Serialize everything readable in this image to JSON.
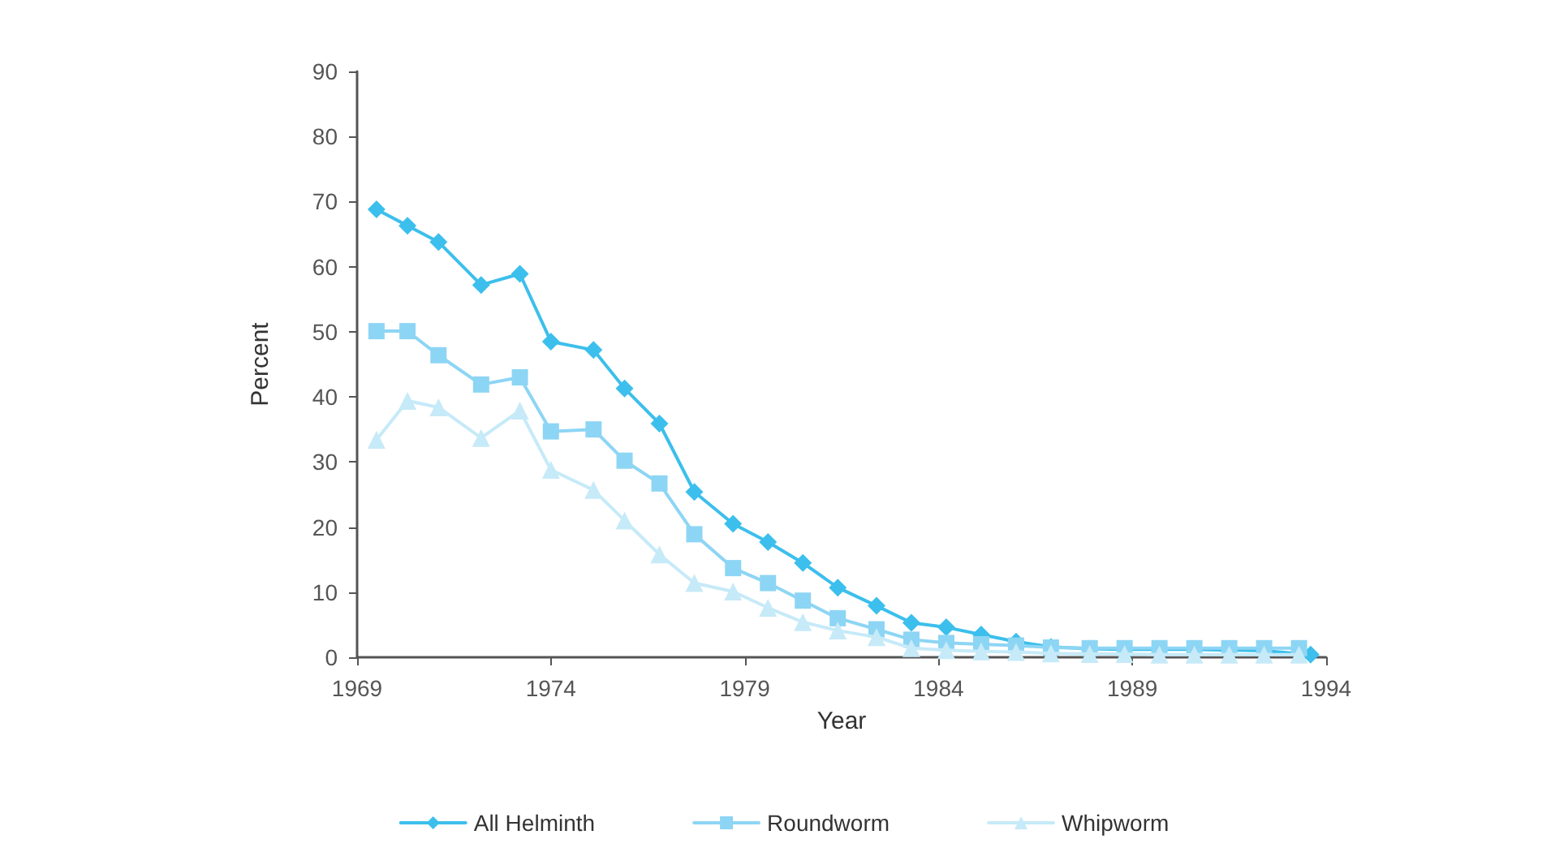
{
  "chart_data": {
    "type": "line",
    "xlabel": "Year",
    "ylabel": "Percent",
    "xlim": [
      1969,
      1994
    ],
    "xticks": [
      1969,
      1974,
      1979,
      1984,
      1989,
      1994
    ],
    "ylim": [
      0,
      90
    ],
    "yticks": [
      0,
      10,
      20,
      30,
      40,
      50,
      60,
      70,
      80,
      90
    ],
    "grid": false,
    "legend": "bottom",
    "line_style": "solid",
    "x": [
      1969.5,
      1970.3,
      1971.1,
      1972.2,
      1973.2,
      1974.0,
      1975.1,
      1975.9,
      1976.8,
      1977.7,
      1978.7,
      1979.6,
      1980.5,
      1981.4,
      1982.4,
      1983.3,
      1984.2,
      1985.1,
      1986.0,
      1986.9,
      1987.9,
      1988.8,
      1989.7,
      1990.6,
      1991.5,
      1992.4,
      1993.3
    ],
    "series": [
      {
        "name": "All Helminth",
        "color": "#3cbfec",
        "marker": "diamond",
        "x": [
          1969.5,
          1970.3,
          1971.1,
          1972.2,
          1973.2,
          1974.0,
          1975.1,
          1975.9,
          1976.8,
          1977.7,
          1978.7,
          1979.6,
          1980.5,
          1981.4,
          1982.4,
          1983.3,
          1984.2,
          1985.1,
          1986.0,
          1986.9,
          1987.9,
          1988.8,
          1989.7,
          1990.6,
          1991.5,
          1992.4,
          1993.6
        ],
        "values": [
          68.8,
          66.3,
          63.8,
          57.2,
          58.9,
          48.5,
          47.2,
          41.3,
          35.9,
          25.4,
          20.5,
          17.7,
          14.5,
          10.7,
          7.9,
          5.3,
          4.6,
          3.5,
          2.4,
          1.6,
          1.3,
          1.2,
          1.2,
          1.2,
          1.1,
          1.0,
          0.4
        ]
      },
      {
        "name": "Roundworm",
        "color": "#8dd5f4",
        "marker": "square",
        "values": [
          50.1,
          50.1,
          46.4,
          41.9,
          43.0,
          34.7,
          35.0,
          30.2,
          26.7,
          18.9,
          13.7,
          11.4,
          8.7,
          6.0,
          4.3,
          2.7,
          2.2,
          2.0,
          1.8,
          1.5,
          1.4,
          1.4,
          1.4,
          1.4,
          1.4,
          1.4,
          1.4
        ]
      },
      {
        "name": "Whipworm",
        "color": "#c6eaf8",
        "marker": "triangle",
        "values": [
          33.4,
          39.4,
          38.4,
          33.7,
          37.9,
          28.8,
          25.7,
          21.0,
          15.8,
          11.4,
          10.1,
          7.6,
          5.4,
          4.1,
          3.1,
          1.4,
          1.1,
          0.9,
          0.8,
          0.6,
          0.5,
          0.5,
          0.4,
          0.4,
          0.4,
          0.4,
          0.4
        ]
      }
    ]
  }
}
